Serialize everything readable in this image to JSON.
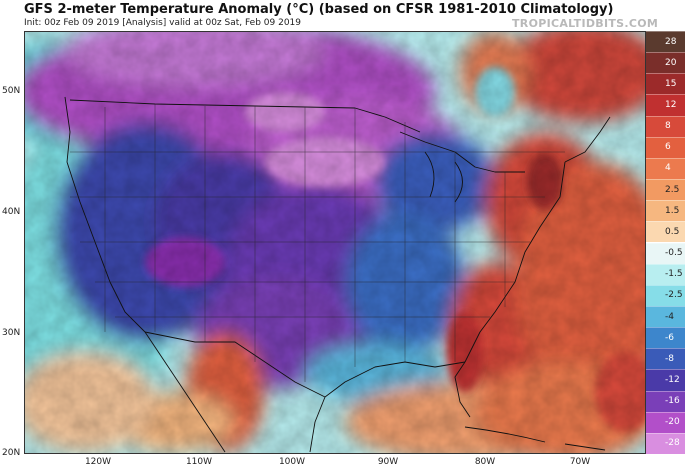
{
  "header": {
    "title": "GFS 2-meter Temperature Anomaly (°C) (based on CFSR 1981-2010 Climatology)",
    "subtitle": "Init: 00z Feb 09 2019  [Analysis]  valid at 00z Sat, Feb 09 2019",
    "brand": "TROPICALTIDBITS.COM"
  },
  "map": {
    "latitudes": [
      "50N",
      "40N",
      "30N",
      "20N"
    ],
    "longitudes": [
      "120W",
      "110W",
      "100W",
      "90W",
      "80W",
      "70W"
    ]
  },
  "colorbar": {
    "labels": [
      "28",
      "20",
      "15",
      "12",
      "8",
      "6",
      "4",
      "2.5",
      "1.5",
      "0.5",
      "-0.5",
      "-1.5",
      "-2.5",
      "-4",
      "-6",
      "-8",
      "-12",
      "-16",
      "-20",
      "-28"
    ],
    "colors": [
      "#5a3a2e",
      "#7a2e2a",
      "#9c2a2a",
      "#c03030",
      "#d74a3a",
      "#e3603f",
      "#ec7a4e",
      "#f29a62",
      "#f6b780",
      "#fbd8b0",
      "#e9f6f6",
      "#b8eef0",
      "#86dde8",
      "#5ab7de",
      "#3d86cc",
      "#3a5bb8",
      "#4a3aa8",
      "#7a3fb8",
      "#b24fc9",
      "#d98ee0"
    ]
  }
}
